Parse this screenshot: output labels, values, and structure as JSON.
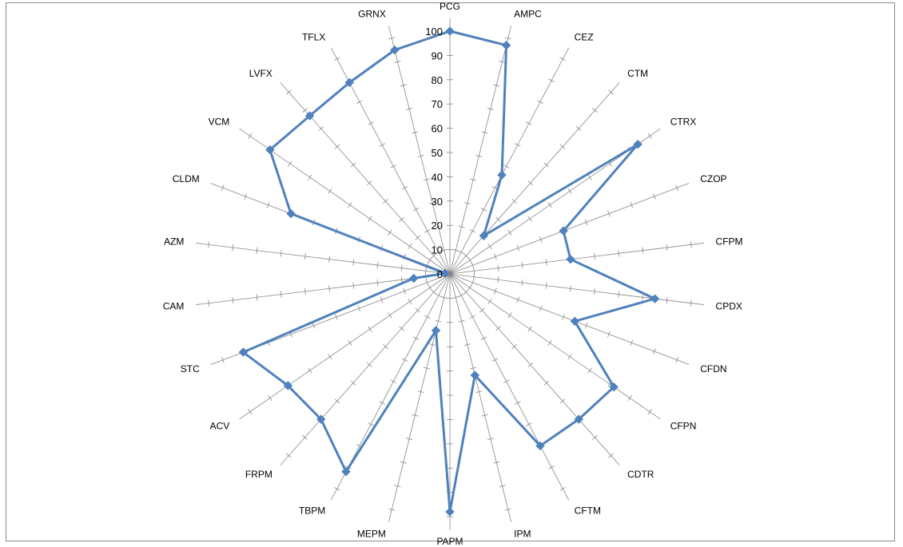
{
  "chart_data": {
    "type": "radar",
    "categories": [
      "PCG",
      "AMPC",
      "CEZ",
      "CTM",
      "CTRX",
      "CZOP",
      "CFPM",
      "CPDX",
      "CFDN",
      "CFPN",
      "CDTR",
      "CFTM",
      "IPM",
      "PAPM",
      "MEPM",
      "TBPM",
      "FRPM",
      "ACV",
      "STC",
      "CAM",
      "AZM",
      "CLDM",
      "VCM",
      "LVFX",
      "TFLX",
      "GRNX"
    ],
    "series": [
      {
        "values": [
          100,
          97,
          46,
          21,
          94,
          50,
          50,
          85,
          55,
          82,
          80,
          80,
          43,
          98,
          24,
          92,
          80,
          81,
          91,
          15,
          2,
          70,
          90,
          87,
          89,
          95
        ]
      }
    ],
    "rlim": [
      0,
      100
    ],
    "ticks": [
      0,
      10,
      20,
      30,
      40,
      50,
      60,
      70,
      80,
      90,
      100
    ],
    "tick_labels": [
      "0",
      "10",
      "20",
      "30",
      "40",
      "50",
      "60",
      "70",
      "80",
      "90",
      "100"
    ],
    "minor_tick_step": 10,
    "legend": "none",
    "grid": "spokes-only",
    "series_color": "#4f81bd",
    "spoke_color": "#868686"
  }
}
